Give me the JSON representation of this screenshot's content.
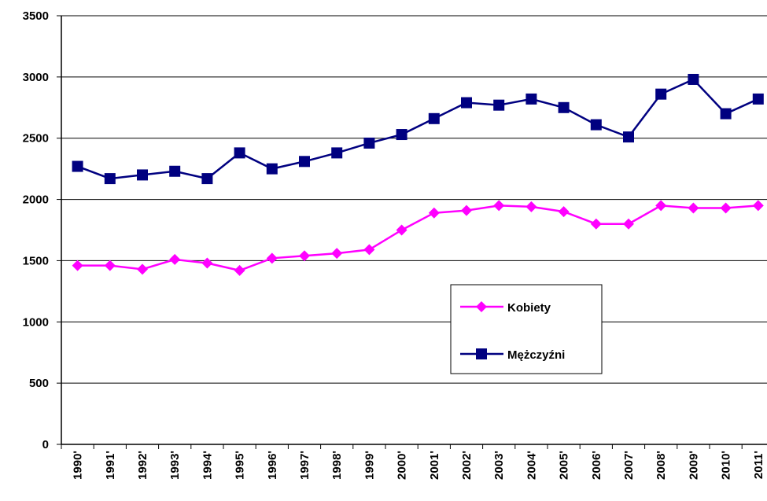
{
  "chart_data": {
    "type": "line",
    "categories": [
      "1990'",
      "1991'",
      "1992'",
      "1993'",
      "1994'",
      "1995'",
      "1996'",
      "1997'",
      "1998'",
      "1999'",
      "2000'",
      "2001'",
      "2002'",
      "2003'",
      "2004'",
      "2005'",
      "2006'",
      "2007'",
      "2008'",
      "2009'",
      "2010'",
      "2011'"
    ],
    "series": [
      {
        "name": "Kobiety",
        "color": "#ff00ff",
        "marker": "diamond",
        "values": [
          1460,
          1460,
          1430,
          1510,
          1480,
          1420,
          1520,
          1540,
          1560,
          1590,
          1750,
          1890,
          1910,
          1950,
          1940,
          1900,
          1800,
          1800,
          1950,
          1930,
          1930,
          1950
        ]
      },
      {
        "name": "Mężczyźni",
        "color": "#000080",
        "marker": "square",
        "values": [
          2270,
          2170,
          2200,
          2230,
          2170,
          2380,
          2250,
          2310,
          2380,
          2460,
          2530,
          2660,
          2790,
          2770,
          2820,
          2750,
          2610,
          2510,
          2860,
          2980,
          2700,
          2820
        ]
      }
    ],
    "ylim": [
      0,
      3500
    ],
    "yticks": [
      0,
      500,
      1000,
      1500,
      2000,
      2500,
      3000,
      3500
    ],
    "grid": true,
    "legend": "center-right"
  }
}
